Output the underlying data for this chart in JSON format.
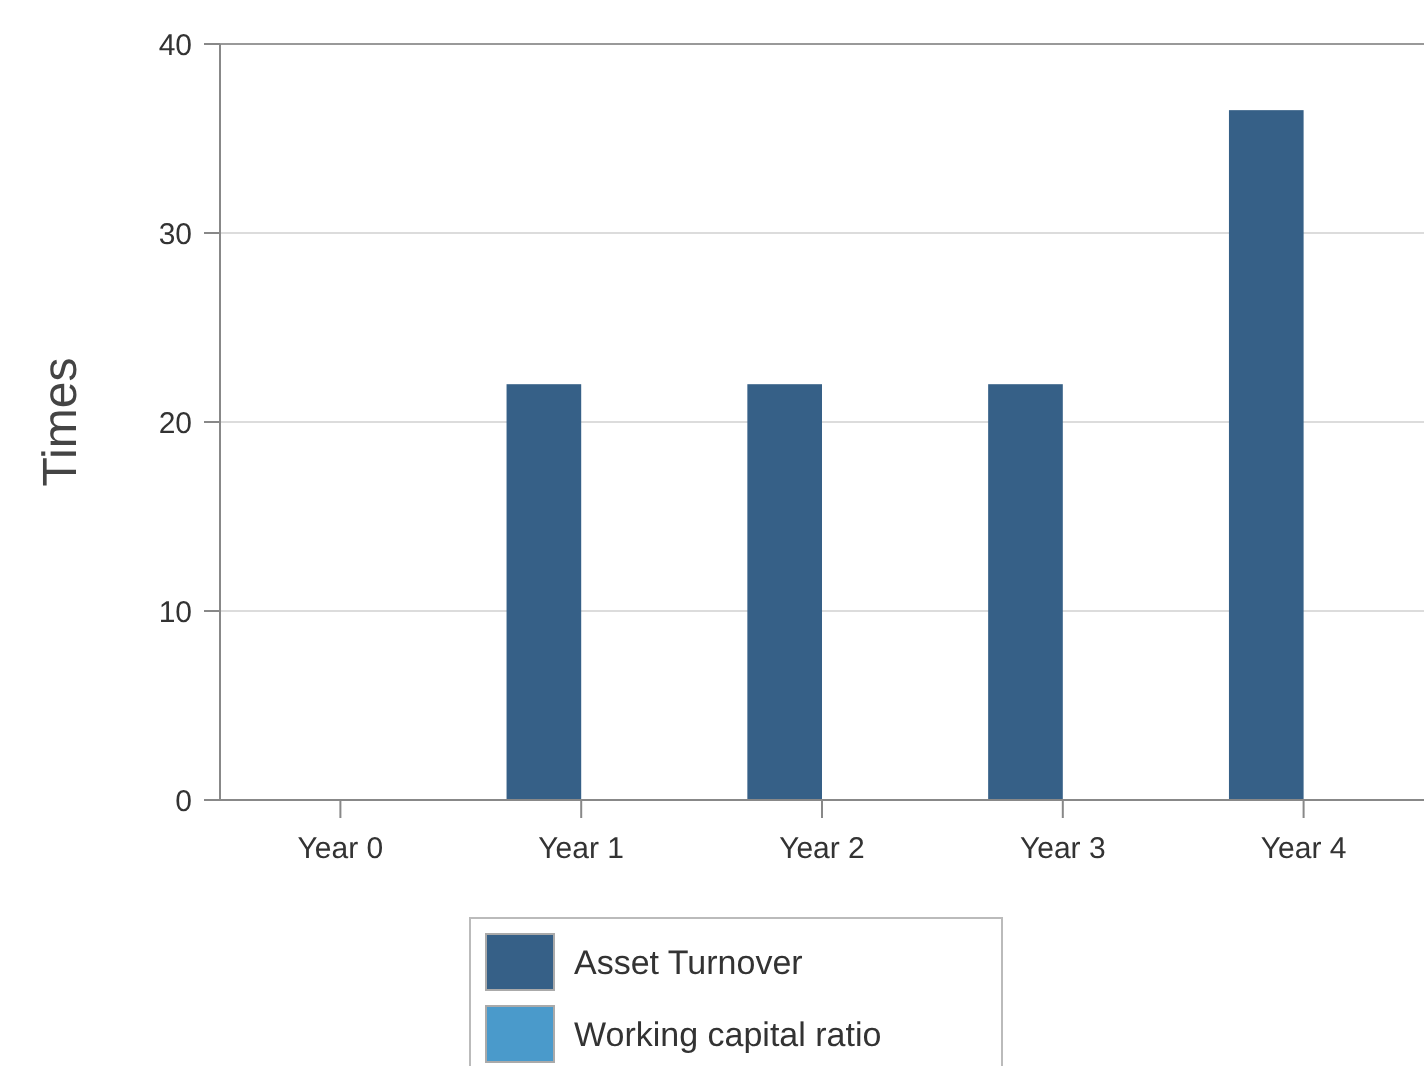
{
  "chart_data": {
    "type": "bar",
    "ylabel": "Times",
    "categories": [
      "Year 0",
      "Year 1",
      "Year 2",
      "Year 3",
      "Year 4"
    ],
    "series": [
      {
        "name": "Asset Turnover",
        "color": "#366087",
        "values": [
          0,
          22,
          22,
          22,
          36.5
        ]
      },
      {
        "name": "Working capital ratio",
        "color": "#4a9acb",
        "values": [
          0,
          0,
          0,
          0,
          0
        ]
      }
    ],
    "ylim": [
      0,
      40
    ],
    "yticks": [
      0,
      10,
      20,
      30,
      40
    ],
    "grid": "y",
    "legend": "bottom"
  }
}
